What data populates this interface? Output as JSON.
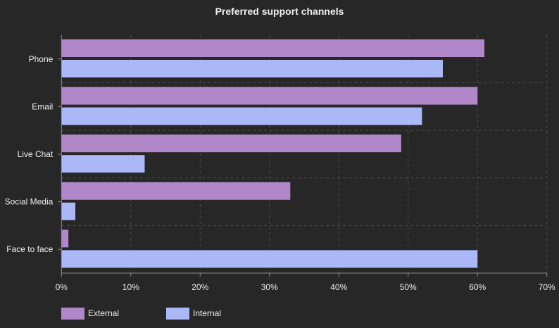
{
  "chart_data": {
    "type": "bar",
    "orientation": "horizontal",
    "title": "Preferred support channels",
    "categories": [
      "Phone",
      "Email",
      "Live Chat",
      "Social Media",
      "Face to face"
    ],
    "series": [
      {
        "name": "External",
        "color": "#b088c9",
        "values": [
          61,
          60,
          49,
          33,
          1
        ]
      },
      {
        "name": "Internal",
        "color": "#aab8f8",
        "values": [
          55,
          52,
          12,
          2,
          60
        ]
      }
    ],
    "x_ticks": [
      "0%",
      "10%",
      "20%",
      "30%",
      "40%",
      "50%",
      "60%",
      "70%"
    ],
    "xlim": [
      0,
      70
    ],
    "unit": "%",
    "grid": true,
    "legend": "bottom-left"
  },
  "colors": {
    "background": "#272727",
    "grid": "#4a4a4a",
    "axis": "#888888",
    "text": "#eeeeee"
  }
}
